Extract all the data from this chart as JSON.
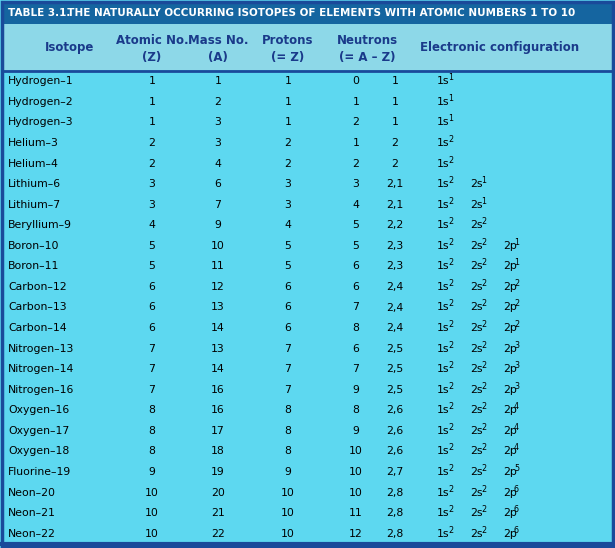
{
  "title_bold": "TABLE 3.1.",
  "title_rest": "  THE NATURALLY OCCURRING ISOTOPES OF ELEMENTS WITH ATOMIC NUMBERS 1 TO 10",
  "title_bg": "#1565a0",
  "subhdr_bg": "#8dd8e8",
  "row_bg": "#5dd8f0",
  "outer_bg": "#5dd8f0",
  "border_color": "#1a4a9a",
  "bottom_border_color": "#1a4a9a",
  "title_color": "#ffffff",
  "header_color": "#1a3a8a",
  "row_color": "#000000",
  "col_headers_line1": [
    "Isotope",
    "Atomic No.",
    "Mass No.",
    "Protons",
    "Neutrons",
    "Electronic configuration"
  ],
  "col_headers_line2": [
    "",
    "(Z)",
    "(A)",
    "(= Z)",
    "(= A – Z)",
    ""
  ],
  "rows": [
    [
      "Hydrogen–1",
      "1",
      "1",
      "1",
      "0",
      "1",
      "1s",
      "1",
      "",
      "",
      "",
      ""
    ],
    [
      "Hydrogen–2",
      "1",
      "2",
      "1",
      "1",
      "1",
      "1s",
      "1",
      "",
      "",
      "",
      ""
    ],
    [
      "Hydrogen–3",
      "1",
      "3",
      "1",
      "2",
      "1",
      "1s",
      "1",
      "",
      "",
      "",
      ""
    ],
    [
      "Helium–3",
      "2",
      "3",
      "2",
      "1",
      "2",
      "1s",
      "2",
      "",
      "",
      "",
      ""
    ],
    [
      "Helium–4",
      "2",
      "4",
      "2",
      "2",
      "2",
      "1s",
      "2",
      "",
      "",
      "",
      ""
    ],
    [
      "Lithium–6",
      "3",
      "6",
      "3",
      "3",
      "2,1",
      "1s",
      "2",
      "2s",
      "1",
      "",
      ""
    ],
    [
      "Lithium–7",
      "3",
      "7",
      "3",
      "4",
      "2,1",
      "1s",
      "2",
      "2s",
      "1",
      "",
      ""
    ],
    [
      "Beryllium–9",
      "4",
      "9",
      "4",
      "5",
      "2,2",
      "1s",
      "2",
      "2s",
      "2",
      "",
      ""
    ],
    [
      "Boron–10",
      "5",
      "10",
      "5",
      "5",
      "2,3",
      "1s",
      "2",
      "2s",
      "2",
      "2p",
      "1"
    ],
    [
      "Boron–11",
      "5",
      "11",
      "5",
      "6",
      "2,3",
      "1s",
      "2",
      "2s",
      "2",
      "2p",
      "1"
    ],
    [
      "Carbon–12",
      "6",
      "12",
      "6",
      "6",
      "2,4",
      "1s",
      "2",
      "2s",
      "2",
      "2p",
      "2"
    ],
    [
      "Carbon–13",
      "6",
      "13",
      "6",
      "7",
      "2,4",
      "1s",
      "2",
      "2s",
      "2",
      "2p",
      "2"
    ],
    [
      "Carbon–14",
      "6",
      "14",
      "6",
      "8",
      "2,4",
      "1s",
      "2",
      "2s",
      "2",
      "2p",
      "2"
    ],
    [
      "Nitrogen–13",
      "7",
      "13",
      "7",
      "6",
      "2,5",
      "1s",
      "2",
      "2s",
      "2",
      "2p",
      "3"
    ],
    [
      "Nitrogen–14",
      "7",
      "14",
      "7",
      "7",
      "2,5",
      "1s",
      "2",
      "2s",
      "2",
      "2p",
      "3"
    ],
    [
      "Nitrogen–16",
      "7",
      "16",
      "7",
      "9",
      "2,5",
      "1s",
      "2",
      "2s",
      "2",
      "2p",
      "3"
    ],
    [
      "Oxygen–16",
      "8",
      "16",
      "8",
      "8",
      "2,6",
      "1s",
      "2",
      "2s",
      "2",
      "2p",
      "4"
    ],
    [
      "Oxygen–17",
      "8",
      "17",
      "8",
      "9",
      "2,6",
      "1s",
      "2",
      "2s",
      "2",
      "2p",
      "4"
    ],
    [
      "Oxygen–18",
      "8",
      "18",
      "8",
      "10",
      "2,6",
      "1s",
      "2",
      "2s",
      "2",
      "2p",
      "4"
    ],
    [
      "Fluorine–19",
      "9",
      "19",
      "9",
      "10",
      "2,7",
      "1s",
      "2",
      "2s",
      "2",
      "2p",
      "5"
    ],
    [
      "Neon–20",
      "10",
      "20",
      "10",
      "10",
      "2,8",
      "1s",
      "2",
      "2s",
      "2",
      "2p",
      "6"
    ],
    [
      "Neon–21",
      "10",
      "21",
      "10",
      "11",
      "2,8",
      "1s",
      "2",
      "2s",
      "2",
      "2p",
      "6"
    ],
    [
      "Neon–22",
      "10",
      "22",
      "10",
      "12",
      "2,8",
      "1s",
      "2",
      "2s",
      "2",
      "2p",
      "6"
    ]
  ],
  "fig_width": 6.15,
  "fig_height": 5.48,
  "dpi": 100
}
